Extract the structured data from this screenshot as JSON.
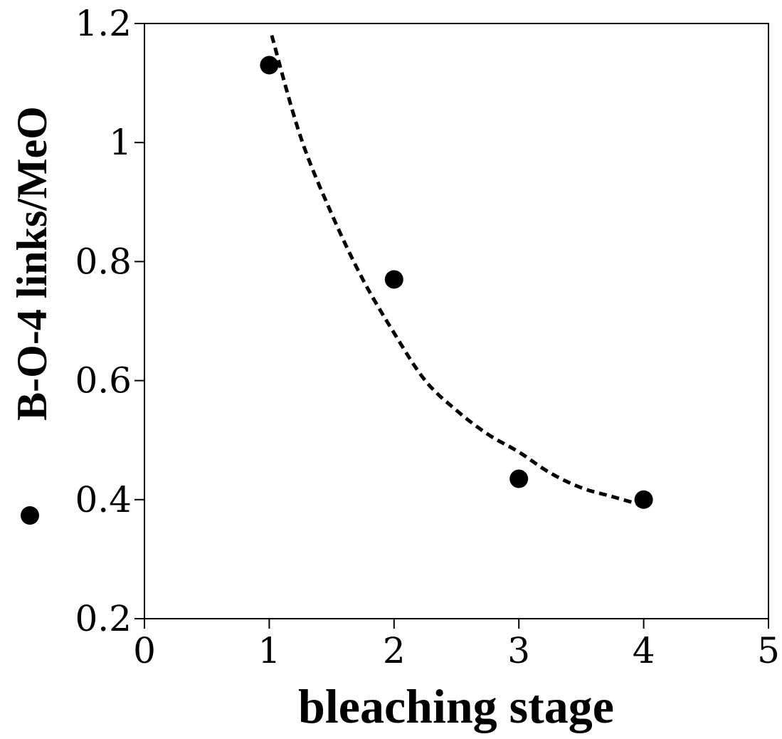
{
  "chart_data": {
    "type": "scatter",
    "title": "",
    "xlabel": "bleaching  stage",
    "ylabel": "B-O-4 links/MeO",
    "xlim": [
      0,
      5
    ],
    "ylim": [
      0.2,
      1.2
    ],
    "xticks": [
      0,
      1,
      2,
      3,
      4,
      5
    ],
    "yticks": [
      0.2,
      0.4,
      0.6,
      0.8,
      1.0,
      1.2
    ],
    "xtick_labels": [
      "0",
      "1",
      "2",
      "3",
      "4",
      "5"
    ],
    "ytick_labels": [
      "0.2",
      "0.4",
      "0.6",
      "0.8",
      "1",
      "1.2"
    ],
    "grid": false,
    "legend": "marker shown beside y-axis title",
    "series": [
      {
        "marker": "filled-circle",
        "color": "#000000",
        "x": [
          1,
          2,
          3,
          4
        ],
        "y": [
          1.13,
          0.77,
          0.435,
          0.4
        ]
      },
      {
        "style": "dashed-fit",
        "color": "#000000",
        "x": [
          1.02,
          1.25,
          1.5,
          1.75,
          2.0,
          2.25,
          2.5,
          2.75,
          3.0,
          3.25,
          3.5,
          3.75,
          4.0
        ],
        "y": [
          1.18,
          1.01,
          0.88,
          0.77,
          0.68,
          0.6,
          0.55,
          0.51,
          0.48,
          0.445,
          0.42,
          0.405,
          0.39
        ]
      }
    ]
  }
}
